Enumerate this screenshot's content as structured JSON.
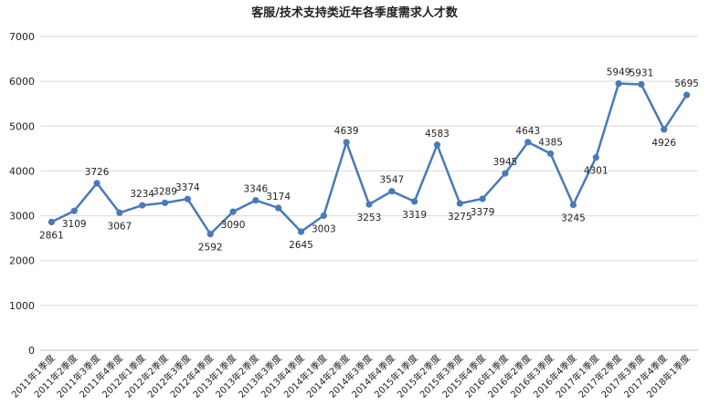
{
  "chart_data": {
    "type": "line",
    "title": "客服/技术支持类近年各季度需求人才数",
    "xlabel": "",
    "ylabel": "",
    "ylim": [
      0,
      7000
    ],
    "yticks": [
      0,
      1000,
      2000,
      3000,
      4000,
      5000,
      6000,
      7000
    ],
    "grid": true,
    "legend": "none",
    "colors": {
      "line": "#4a7ab5",
      "grid": "#d9d9d9",
      "axis": "#bfbfbf"
    },
    "categories": [
      "2011年1季度",
      "2011年2季度",
      "2011年3季度",
      "2011年4季度",
      "2012年1季度",
      "2012年2季度",
      "2012年3季度",
      "2012年4季度",
      "2013年1季度",
      "2013年2季度",
      "2013年3季度",
      "2013年4季度",
      "2014年1季度",
      "2014年2季度",
      "2014年3季度",
      "2014年4季度",
      "2015年1季度",
      "2015年2季度",
      "2015年3季度",
      "2015年4季度",
      "2016年1季度",
      "2016年2季度",
      "2016年3季度",
      "2016年4季度",
      "2017年1季度",
      "2017年2季度",
      "2017年3季度",
      "2017年4季度",
      "2018年1季度"
    ],
    "series": [
      {
        "values": [
          2861,
          3109,
          3726,
          3067,
          3234,
          3289,
          3374,
          2592,
          3090,
          3346,
          3174,
          2645,
          3003,
          4639,
          3253,
          3547,
          3319,
          4583,
          3275,
          3379,
          3945,
          4643,
          4385,
          3245,
          4301,
          5949,
          5931,
          4926,
          5695
        ],
        "label_position": [
          "below",
          "below",
          "above",
          "below",
          "above",
          "above",
          "above",
          "below",
          "below",
          "above",
          "above",
          "below",
          "below",
          "above",
          "below",
          "above",
          "below",
          "above",
          "below",
          "below",
          "above",
          "above",
          "above",
          "below",
          "below",
          "above",
          "above",
          "below",
          "above"
        ]
      }
    ]
  }
}
